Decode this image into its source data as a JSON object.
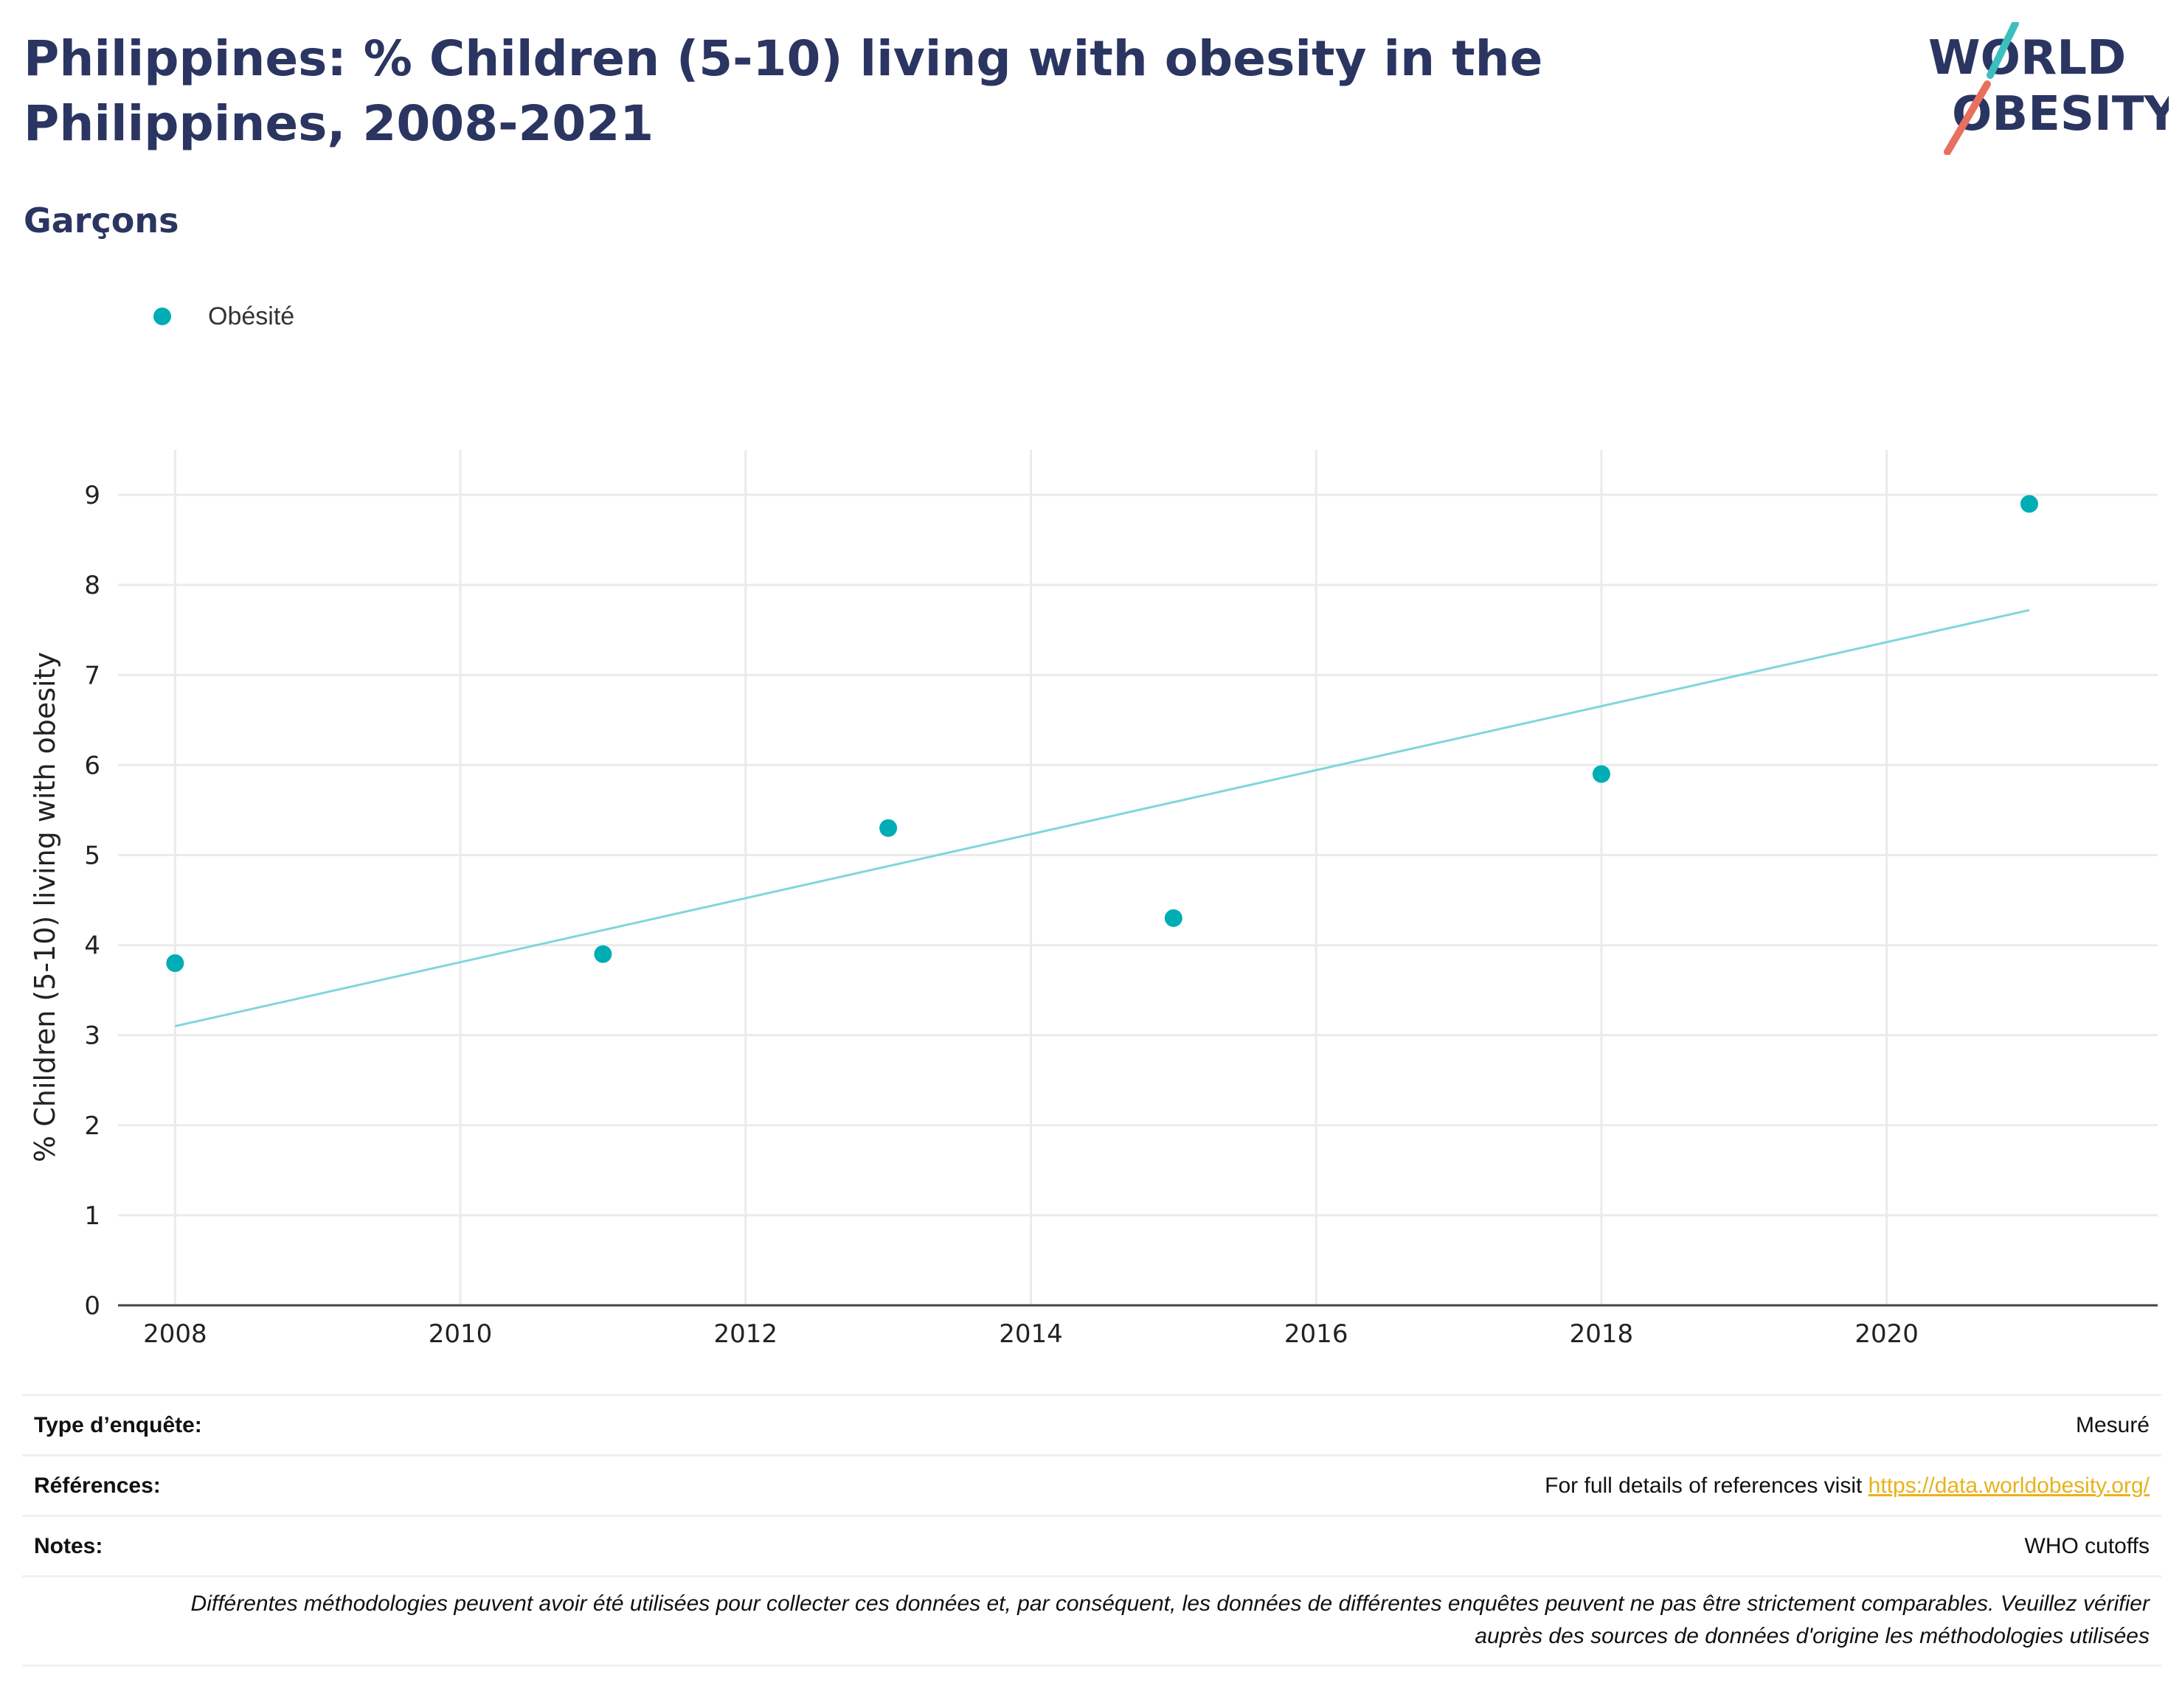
{
  "title": "Philippines: % Children (5-10) living with obesity in the Philippines, 2008-2021",
  "subtitle": "Garçons",
  "logo": {
    "line1": "WORLD",
    "line2": "OBESITY",
    "accent": "#3bbfbf",
    "accent2": "#e8705f",
    "text_color": "#2b3561"
  },
  "legend": {
    "label": "Obésité",
    "color": "#00adb5"
  },
  "chart_data": {
    "type": "scatter",
    "ylabel": "% Children (5-10) living with obesity",
    "xlabel": "",
    "xlim": [
      2007.6,
      2021.9
    ],
    "ylim": [
      0,
      9.5
    ],
    "x_ticks": [
      2008,
      2010,
      2012,
      2014,
      2016,
      2018,
      2020
    ],
    "y_ticks": [
      0,
      1,
      2,
      3,
      4,
      5,
      6,
      7,
      8,
      9
    ],
    "grid": true,
    "series": [
      {
        "name": "Obésité",
        "color": "#00adb5",
        "points": [
          {
            "x": 2008,
            "y": 3.8
          },
          {
            "x": 2011,
            "y": 3.9
          },
          {
            "x": 2013,
            "y": 5.3
          },
          {
            "x": 2015,
            "y": 4.3
          },
          {
            "x": 2018,
            "y": 5.9
          },
          {
            "x": 2021,
            "y": 8.9
          }
        ]
      }
    ],
    "trendline": {
      "color": "#7fd6db",
      "from": {
        "x": 2008,
        "y": 3.1
      },
      "to": {
        "x": 2021,
        "y": 7.72
      }
    }
  },
  "meta": {
    "survey_label": "Type d’enquête:",
    "survey_value": "Mesuré",
    "refs_label": "Références:",
    "refs_text": "For full details of references visit ",
    "refs_link": "https://data.worldobesity.org/",
    "notes_label": "Notes:",
    "notes_value": "WHO cutoffs",
    "disclaimer": "Différentes méthodologies peuvent avoir été utilisées pour collecter ces données et, par conséquent, les données de différentes enquêtes peuvent ne pas être strictement comparables. Veuillez vérifier auprès des sources de données d'origine les méthodologies utilisées"
  }
}
